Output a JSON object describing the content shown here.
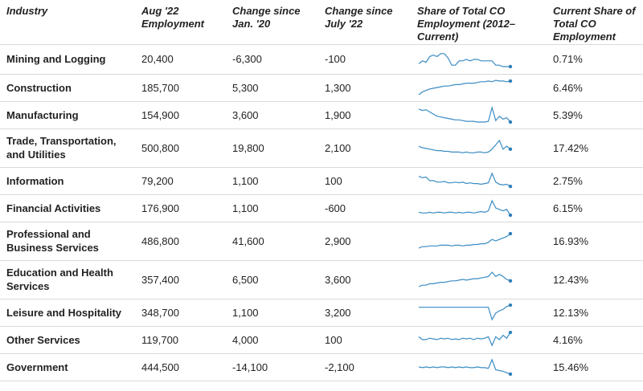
{
  "columns": [
    "Industry",
    "Aug '22 Employment",
    "Change since Jan. '20",
    "Change since July '22",
    "Share of Total CO Employment (2012–Current)",
    "Current Share of Total CO Employment"
  ],
  "colors": {
    "spark_line": "#3b8cc4",
    "spark_dot": "#2e7fb8",
    "divider": "#d9d9d9"
  },
  "chart_data": {
    "type": "table",
    "rows": [
      {
        "industry": "Mining and Logging",
        "employment": "20,400",
        "change_jan20": "-6,300",
        "change_jul22": "-100",
        "share": "0.71%",
        "trend": [
          0.8,
          0.6,
          0.7,
          0.3,
          0.2,
          0.3,
          0.1,
          0.1,
          0.4,
          0.9,
          0.9,
          0.6,
          0.6,
          0.5,
          0.6,
          0.5,
          0.5,
          0.6,
          0.6,
          0.6,
          0.6,
          0.9,
          0.9,
          1.0,
          1.0,
          1.0
        ]
      },
      {
        "industry": "Construction",
        "employment": "185,700",
        "change_jan20": "5,300",
        "change_jul22": "1,300",
        "share": "6.46%",
        "trend": [
          1.0,
          0.8,
          0.7,
          0.6,
          0.55,
          0.5,
          0.45,
          0.4,
          0.4,
          0.35,
          0.3,
          0.3,
          0.25,
          0.2,
          0.2,
          0.2,
          0.15,
          0.1,
          0.1,
          0.05,
          0.1,
          0.0,
          0.05,
          0.05,
          0.1,
          0.05
        ]
      },
      {
        "industry": "Manufacturing",
        "employment": "154,900",
        "change_jan20": "3,600",
        "change_jul22": "1,900",
        "share": "5.39%",
        "trend": [
          0.1,
          0.2,
          0.15,
          0.3,
          0.45,
          0.6,
          0.65,
          0.7,
          0.75,
          0.8,
          0.85,
          0.85,
          0.9,
          0.95,
          0.95,
          0.95,
          1.0,
          1.0,
          1.0,
          0.95,
          0.0,
          0.9,
          0.6,
          0.8,
          0.7,
          1.0
        ]
      },
      {
        "industry": "Trade, Transportation, and Utilities",
        "employment": "500,800",
        "change_jan20": "19,800",
        "change_jul22": "2,100",
        "share": "17.42%",
        "trend": [
          0.4,
          0.5,
          0.55,
          0.6,
          0.65,
          0.7,
          0.7,
          0.75,
          0.75,
          0.8,
          0.8,
          0.8,
          0.85,
          0.8,
          0.85,
          0.85,
          0.8,
          0.8,
          0.85,
          0.8,
          0.6,
          0.3,
          0.0,
          0.6,
          0.4,
          0.6
        ]
      },
      {
        "industry": "Information",
        "employment": "79,200",
        "change_jan20": "1,100",
        "change_jul22": "100",
        "share": "2.75%",
        "trend": [
          0.2,
          0.3,
          0.25,
          0.5,
          0.5,
          0.6,
          0.6,
          0.55,
          0.65,
          0.65,
          0.6,
          0.65,
          0.6,
          0.7,
          0.65,
          0.7,
          0.7,
          0.75,
          0.7,
          0.65,
          0.0,
          0.6,
          0.75,
          0.8,
          0.75,
          0.9
        ]
      },
      {
        "industry": "Financial Activities",
        "employment": "176,900",
        "change_jan20": "1,100",
        "change_jul22": "-600",
        "share": "6.15%",
        "trend": [
          0.8,
          0.85,
          0.85,
          0.8,
          0.85,
          0.8,
          0.8,
          0.85,
          0.8,
          0.8,
          0.85,
          0.8,
          0.85,
          0.8,
          0.8,
          0.85,
          0.8,
          0.75,
          0.8,
          0.7,
          0.0,
          0.5,
          0.6,
          0.7,
          0.6,
          1.0
        ]
      },
      {
        "industry": "Professional and Business Services",
        "employment": "486,800",
        "change_jan20": "41,600",
        "change_jul22": "2,900",
        "share": "16.93%",
        "trend": [
          1.0,
          0.9,
          0.9,
          0.85,
          0.85,
          0.85,
          0.8,
          0.8,
          0.8,
          0.85,
          0.8,
          0.8,
          0.85,
          0.8,
          0.8,
          0.75,
          0.75,
          0.7,
          0.7,
          0.6,
          0.4,
          0.5,
          0.4,
          0.3,
          0.2,
          0.0
        ]
      },
      {
        "industry": "Education and Health Services",
        "employment": "357,400",
        "change_jan20": "6,500",
        "change_jul22": "3,600",
        "share": "12.43%",
        "trend": [
          1.0,
          0.9,
          0.9,
          0.8,
          0.8,
          0.75,
          0.7,
          0.7,
          0.65,
          0.6,
          0.6,
          0.55,
          0.5,
          0.55,
          0.5,
          0.45,
          0.45,
          0.4,
          0.35,
          0.3,
          0.0,
          0.3,
          0.15,
          0.3,
          0.5,
          0.6
        ]
      },
      {
        "industry": "Leisure and Hospitality",
        "employment": "348,700",
        "change_jan20": "1,100",
        "change_jul22": "3,200",
        "share": "12.13%",
        "trend": [
          0.15,
          0.15,
          0.15,
          0.15,
          0.15,
          0.15,
          0.15,
          0.15,
          0.15,
          0.15,
          0.15,
          0.15,
          0.15,
          0.15,
          0.15,
          0.15,
          0.15,
          0.15,
          0.15,
          0.15,
          1.0,
          0.55,
          0.4,
          0.3,
          0.1,
          0.0
        ]
      },
      {
        "industry": "Other Services",
        "employment": "119,700",
        "change_jan20": "4,000",
        "change_jul22": "100",
        "share": "4.16%",
        "trend": [
          0.3,
          0.5,
          0.5,
          0.4,
          0.45,
          0.5,
          0.4,
          0.45,
          0.4,
          0.5,
          0.45,
          0.5,
          0.4,
          0.45,
          0.4,
          0.5,
          0.4,
          0.45,
          0.4,
          0.3,
          0.9,
          0.3,
          0.5,
          0.2,
          0.4,
          0.0
        ]
      },
      {
        "industry": "Government",
        "employment": "444,500",
        "change_jan20": "-14,100",
        "change_jul22": "-2,100",
        "share": "15.46%",
        "trend": [
          0.5,
          0.55,
          0.5,
          0.55,
          0.5,
          0.55,
          0.5,
          0.5,
          0.55,
          0.5,
          0.55,
          0.5,
          0.55,
          0.5,
          0.55,
          0.55,
          0.5,
          0.55,
          0.55,
          0.6,
          0.0,
          0.7,
          0.75,
          0.8,
          0.9,
          1.0
        ]
      }
    ]
  }
}
